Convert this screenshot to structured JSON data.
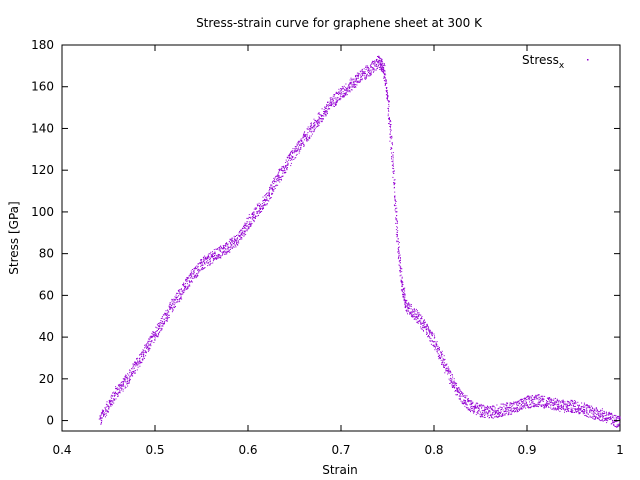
{
  "chart_data": {
    "type": "scatter",
    "title": "Stress-strain curve for graphene sheet at 300 K",
    "xlabel": "Strain",
    "ylabel": "Stress [GPa]",
    "xlim": [
      0.4,
      1.0
    ],
    "ylim": [
      -5,
      180
    ],
    "xticks": [
      "0.4",
      "0.5",
      "0.6",
      "0.7",
      "0.8",
      "0.9",
      "1"
    ],
    "xtick_values": [
      0.4,
      0.5,
      0.6,
      0.7,
      0.8,
      0.9,
      1.0
    ],
    "yticks": [
      "0",
      "20",
      "40",
      "60",
      "80",
      "100",
      "120",
      "140",
      "160",
      "180"
    ],
    "ytick_values": [
      0,
      20,
      40,
      60,
      80,
      100,
      120,
      140,
      160,
      180
    ],
    "grid": false,
    "legend_position": "top-right",
    "series": [
      {
        "name": "Stress",
        "name_subscript": "x",
        "color": "#9400d3",
        "points": [
          [
            0.44,
            0.0
          ],
          [
            0.45,
            8.0
          ],
          [
            0.46,
            15.0
          ],
          [
            0.47,
            20.0
          ],
          [
            0.48,
            27.0
          ],
          [
            0.49,
            34.0
          ],
          [
            0.5,
            42.0
          ],
          [
            0.51,
            49.0
          ],
          [
            0.52,
            57.0
          ],
          [
            0.53,
            63.0
          ],
          [
            0.54,
            70.0
          ],
          [
            0.55,
            75.0
          ],
          [
            0.56,
            78.0
          ],
          [
            0.57,
            81.0
          ],
          [
            0.58,
            84.0
          ],
          [
            0.59,
            88.0
          ],
          [
            0.6,
            95.0
          ],
          [
            0.61,
            101.0
          ],
          [
            0.62,
            107.0
          ],
          [
            0.63,
            115.0
          ],
          [
            0.64,
            122.0
          ],
          [
            0.65,
            129.0
          ],
          [
            0.66,
            135.0
          ],
          [
            0.67,
            141.0
          ],
          [
            0.68,
            147.0
          ],
          [
            0.69,
            153.0
          ],
          [
            0.7,
            157.0
          ],
          [
            0.71,
            161.0
          ],
          [
            0.72,
            165.0
          ],
          [
            0.73,
            168.0
          ],
          [
            0.74,
            172.0
          ],
          [
            0.745,
            170.0
          ],
          [
            0.75,
            155.0
          ],
          [
            0.755,
            125.0
          ],
          [
            0.76,
            90.0
          ],
          [
            0.765,
            65.0
          ],
          [
            0.77,
            55.0
          ],
          [
            0.78,
            51.0
          ],
          [
            0.79,
            45.0
          ],
          [
            0.8,
            38.0
          ],
          [
            0.81,
            28.0
          ],
          [
            0.82,
            18.0
          ],
          [
            0.83,
            11.0
          ],
          [
            0.84,
            7.0
          ],
          [
            0.85,
            5.0
          ],
          [
            0.86,
            4.0
          ],
          [
            0.87,
            5.0
          ],
          [
            0.88,
            6.0
          ],
          [
            0.89,
            7.0
          ],
          [
            0.9,
            9.0
          ],
          [
            0.91,
            10.0
          ],
          [
            0.92,
            9.0
          ],
          [
            0.93,
            8.0
          ],
          [
            0.94,
            7.0
          ],
          [
            0.95,
            7.0
          ],
          [
            0.96,
            6.0
          ],
          [
            0.97,
            4.0
          ],
          [
            0.98,
            3.0
          ],
          [
            0.99,
            1.0
          ],
          [
            1.0,
            -1.0
          ]
        ]
      }
    ]
  }
}
